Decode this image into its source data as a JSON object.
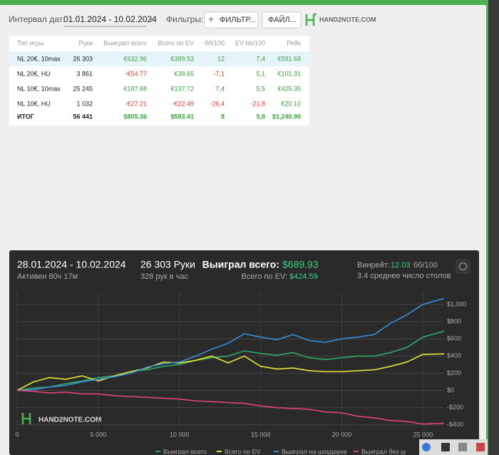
{
  "toolbar": {
    "interval_label": "Интервал дат:",
    "interval_value": "01.01.2024 - 10.02.2024",
    "filters_label": "Фильтры:",
    "filter_button": "ФИЛЬТР...",
    "file_button": "ФАЙЛ...",
    "logo": "HAND2NOTE.COM"
  },
  "table": {
    "headers": [
      "Тип игры",
      "Руки",
      "Выиграл всего",
      "Всего по EV",
      "бб/100",
      "EV bb/100",
      "Рейк"
    ],
    "rows": [
      [
        "NL 20€, 10max",
        "26 303",
        "€632.96",
        "€389.53",
        "12",
        "7,4",
        "€591.68"
      ],
      [
        "NL 20€, HU",
        "3 861",
        "-€54.77",
        "€39.65",
        "-7,1",
        "5,1",
        "€101.31"
      ],
      [
        "NL 10€, 10max",
        "25 245",
        "€187.88",
        "€137.72",
        "7,4",
        "5,5",
        "€425.35"
      ],
      [
        "NL 10€, HU",
        "1 032",
        "-€27.21",
        "-€22.49",
        "-26,4",
        "-21,8",
        "€20.10"
      ],
      [
        "ИТОГ",
        "56 441",
        "$805.36",
        "$593.41",
        "8",
        "5,8",
        "$1,240.90"
      ]
    ]
  },
  "chart_panel": {
    "period": "28.01.2024 - 10.02.2024",
    "active": "Активен 80ч 17м",
    "hands": "26 303 Руки",
    "hands_per_hour": "328 рук в час",
    "won_label": "Выиграл всего:",
    "won_value": "$689.93",
    "ev_label": "Всего по EV:",
    "ev_value": "$424.59",
    "winrate_label": "Винрейт:",
    "winrate_value": "12.03",
    "winrate_unit": "бб/100",
    "tables": "3.4 среднее число столов",
    "watermark": "HAND2NOTE.COM"
  },
  "chart_data": {
    "type": "line",
    "grid": true,
    "x": [
      0,
      1000,
      2000,
      3000,
      4000,
      5000,
      6000,
      7000,
      8000,
      9000,
      10000,
      11000,
      12000,
      13000,
      14000,
      15000,
      16000,
      17000,
      18000,
      19000,
      20000,
      21000,
      22000,
      23000,
      24000,
      25000,
      26303
    ],
    "series": [
      {
        "name": "Выиграл всего",
        "color": "#2ea86a",
        "values": [
          0,
          30,
          40,
          80,
          110,
          150,
          170,
          220,
          240,
          280,
          300,
          350,
          380,
          400,
          460,
          430,
          410,
          440,
          380,
          360,
          380,
          400,
          400,
          440,
          500,
          620,
          690
        ]
      },
      {
        "name": "Всего по EV",
        "color": "#e6e63a",
        "values": [
          0,
          100,
          150,
          130,
          170,
          110,
          170,
          220,
          260,
          330,
          320,
          350,
          400,
          320,
          400,
          280,
          250,
          260,
          230,
          220,
          220,
          230,
          240,
          280,
          330,
          420,
          425
        ]
      },
      {
        "name": "Выиграл на шоудауне",
        "color": "#3b8fd8",
        "values": [
          0,
          10,
          40,
          60,
          100,
          130,
          160,
          200,
          270,
          310,
          330,
          400,
          480,
          550,
          660,
          620,
          590,
          650,
          580,
          560,
          600,
          620,
          650,
          780,
          880,
          1000,
          1070
        ]
      },
      {
        "name": "Выиграл без ш",
        "color": "#e0457a",
        "values": [
          0,
          -10,
          -30,
          -20,
          -40,
          -40,
          -60,
          -70,
          -80,
          -90,
          -100,
          -120,
          -130,
          -140,
          -150,
          -180,
          -200,
          -210,
          -220,
          -250,
          -260,
          -300,
          -320,
          -350,
          -360,
          -390,
          -380
        ]
      }
    ],
    "xlim": [
      0,
      26303
    ],
    "xticks": [
      0,
      {
        "value": 5000,
        "label": "5 000"
      },
      {
        "value": 10000,
        "label": "10 000"
      },
      {
        "value": 15000,
        "label": "15 000"
      },
      {
        "value": 20000,
        "label": "20 000"
      },
      {
        "value": 25000,
        "label": "25 000"
      }
    ],
    "ylim": [
      -460,
      1140
    ],
    "yticks": [
      {
        "value": -400,
        "label": "-$400"
      },
      {
        "value": -200,
        "label": "-$200"
      },
      {
        "value": 0,
        "label": "$0"
      },
      {
        "value": 200,
        "label": "$200"
      },
      {
        "value": 400,
        "label": "$400"
      },
      {
        "value": 600,
        "label": "$600"
      },
      {
        "value": 800,
        "label": "$800"
      },
      {
        "value": 1000,
        "label": "$1,000"
      }
    ]
  }
}
